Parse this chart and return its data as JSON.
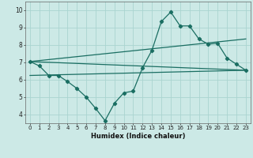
{
  "xlabel": "Humidex (Indice chaleur)",
  "background_color": "#cce9e6",
  "grid_color": "#aad4d0",
  "line_color": "#1a6e62",
  "x_min": -0.5,
  "x_max": 23.5,
  "y_min": 3.5,
  "y_max": 10.5,
  "yticks": [
    4,
    5,
    6,
    7,
    8,
    9,
    10
  ],
  "xticks": [
    0,
    1,
    2,
    3,
    4,
    5,
    6,
    7,
    8,
    9,
    10,
    11,
    12,
    13,
    14,
    15,
    16,
    17,
    18,
    19,
    20,
    21,
    22,
    23
  ],
  "series1_x": [
    0,
    1,
    2,
    3,
    4,
    5,
    6,
    7,
    8,
    9,
    10,
    11,
    12,
    13,
    14,
    15,
    16,
    17,
    18,
    19,
    20,
    21,
    22,
    23
  ],
  "series1_y": [
    7.05,
    6.8,
    6.25,
    6.25,
    5.9,
    5.5,
    5.0,
    4.35,
    3.65,
    4.65,
    5.25,
    5.35,
    6.7,
    7.7,
    9.35,
    9.9,
    9.1,
    9.1,
    8.35,
    8.05,
    8.1,
    7.25,
    6.9,
    6.55
  ],
  "line1_x": [
    0,
    23
  ],
  "line1_y": [
    7.05,
    6.55
  ],
  "line2_x": [
    0,
    23
  ],
  "line2_y": [
    7.05,
    8.35
  ],
  "line3_x": [
    0,
    23
  ],
  "line3_y": [
    6.25,
    6.55
  ]
}
